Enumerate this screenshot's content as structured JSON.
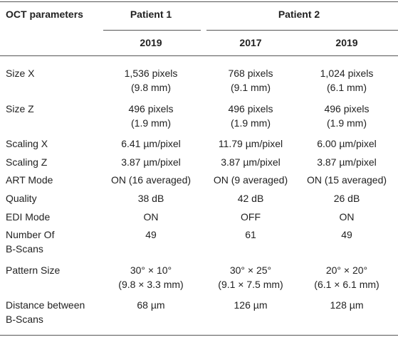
{
  "table": {
    "header": {
      "label": "OCT parameters",
      "patients": [
        "Patient 1",
        "Patient 2"
      ],
      "years": [
        "2019",
        "2017",
        "2019"
      ]
    },
    "rows": [
      {
        "label": [
          "Size X"
        ],
        "cells": [
          [
            "1,536 pixels",
            "(9.8 mm)"
          ],
          [
            "768 pixels",
            "(9.1 mm)"
          ],
          [
            "1,024 pixels",
            "(6.1 mm)"
          ]
        ]
      },
      {
        "label": [
          "Size Z"
        ],
        "cells": [
          [
            "496 pixels",
            "(1.9 mm)"
          ],
          [
            "496 pixels",
            "(1.9 mm)"
          ],
          [
            "496 pixels",
            "(1.9 mm)"
          ]
        ]
      },
      {
        "label": [
          "Scaling X"
        ],
        "cells": [
          [
            "6.41 µm/pixel"
          ],
          [
            "11.79 µm/pixel"
          ],
          [
            "6.00 µm/pixel"
          ]
        ]
      },
      {
        "label": [
          "Scaling Z"
        ],
        "cells": [
          [
            "3.87 µm/pixel"
          ],
          [
            "3.87 µm/pixel"
          ],
          [
            "3.87 µm/pixel"
          ]
        ]
      },
      {
        "label": [
          "ART Mode"
        ],
        "cells": [
          [
            "ON (16 averaged)"
          ],
          [
            "ON (9 averaged)"
          ],
          [
            "ON (15 averaged)"
          ]
        ]
      },
      {
        "label": [
          "Quality"
        ],
        "cells": [
          [
            "38 dB"
          ],
          [
            "42 dB"
          ],
          [
            "26 dB"
          ]
        ]
      },
      {
        "label": [
          "EDI Mode"
        ],
        "cells": [
          [
            "ON"
          ],
          [
            "OFF"
          ],
          [
            "ON"
          ]
        ]
      },
      {
        "label": [
          "Number Of",
          "B-Scans"
        ],
        "cells": [
          [
            "49"
          ],
          [
            "61"
          ],
          [
            "49"
          ]
        ]
      },
      {
        "label": [
          "Pattern Size"
        ],
        "cells": [
          [
            "30° × 10°",
            "(9.8 × 3.3 mm)"
          ],
          [
            "30° × 25°",
            "(9.1 × 7.5 mm)"
          ],
          [
            "20° × 20°",
            "(6.1 × 6.1 mm)"
          ]
        ]
      },
      {
        "label": [
          "Distance between",
          "B-Scans"
        ],
        "cells": [
          [
            "68 µm"
          ],
          [
            "126 µm"
          ],
          [
            "128 µm"
          ]
        ]
      }
    ]
  }
}
